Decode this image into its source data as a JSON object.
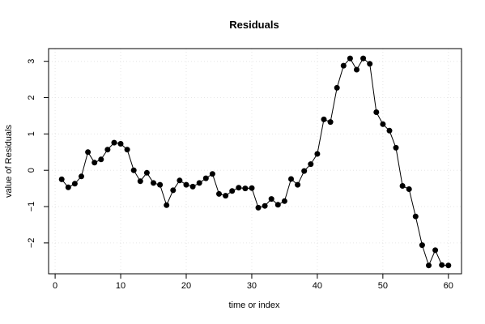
{
  "chart_data": {
    "type": "line",
    "title": "Residuals",
    "xlabel": "time or index",
    "ylabel": "value of Residuals",
    "xlim": [
      -1,
      62
    ],
    "ylim": [
      -2.85,
      3.35
    ],
    "grid": true,
    "x_ticks": [
      0,
      10,
      20,
      30,
      40,
      50,
      60
    ],
    "y_ticks": [
      -2,
      -1,
      0,
      1,
      2,
      3
    ],
    "x_tick_labels": [
      "0",
      "10",
      "20",
      "30",
      "40",
      "50",
      "60"
    ],
    "y_tick_labels": [
      "−2",
      "−1",
      "0",
      "1",
      "2",
      "3"
    ],
    "series": [
      {
        "x": [
          1,
          2,
          3,
          4,
          5,
          6,
          7,
          8,
          9,
          10,
          11,
          12,
          13,
          14,
          15,
          16,
          17,
          18,
          19,
          20,
          21,
          22,
          23,
          24,
          25,
          26,
          27,
          28,
          29,
          30,
          31,
          32,
          33,
          34,
          35,
          36,
          37,
          38,
          39,
          40,
          41,
          42,
          43,
          44,
          45,
          46,
          47,
          48,
          49,
          50,
          51,
          52,
          53,
          54,
          55,
          56,
          57,
          58,
          59,
          60
        ],
        "values": [
          -0.25,
          -0.47,
          -0.37,
          -0.17,
          0.5,
          0.21,
          0.3,
          0.57,
          0.76,
          0.73,
          0.57,
          0.0,
          -0.3,
          -0.07,
          -0.35,
          -0.4,
          -0.96,
          -0.55,
          -0.28,
          -0.4,
          -0.45,
          -0.35,
          -0.22,
          -0.1,
          -0.65,
          -0.7,
          -0.57,
          -0.48,
          -0.5,
          -0.49,
          -1.03,
          -0.98,
          -0.79,
          -0.95,
          -0.85,
          -0.24,
          -0.4,
          -0.02,
          0.17,
          0.45,
          1.4,
          1.33,
          2.27,
          2.88,
          3.08,
          2.77,
          3.08,
          2.93,
          1.6,
          1.27,
          1.09,
          0.62,
          -0.43,
          -0.52,
          -1.27,
          -2.06,
          -2.62,
          -2.2,
          -2.61,
          -2.62
        ]
      }
    ]
  }
}
